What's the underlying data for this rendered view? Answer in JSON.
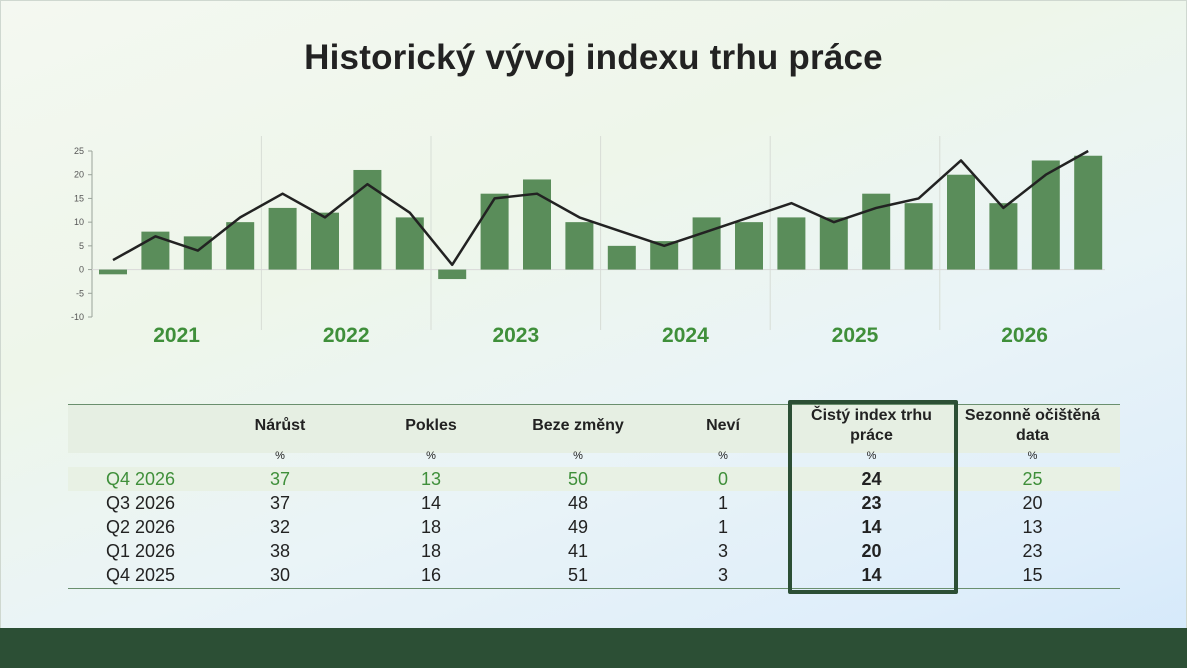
{
  "title": "Historický vývoj indexu trhu práce",
  "chart_data": {
    "type": "bar",
    "y_ticks": [
      25,
      20,
      15,
      10,
      5,
      0,
      -5,
      -10
    ],
    "ylim": [
      -10,
      25
    ],
    "groups": [
      "2021",
      "2022",
      "2023",
      "2024",
      "2025",
      "2026"
    ],
    "group_sizes": [
      4,
      4,
      4,
      4,
      4,
      4
    ],
    "series": [
      {
        "kind": "bar",
        "color": "#5a8d5a",
        "values": [
          -1,
          8,
          7,
          10,
          13,
          12,
          21,
          11,
          -2,
          16,
          19,
          10,
          5,
          6,
          11,
          10,
          11,
          11,
          16,
          14,
          20,
          14,
          23,
          24
        ]
      },
      {
        "kind": "line",
        "color": "#222222",
        "values": [
          2,
          7,
          4,
          11,
          16,
          11,
          18,
          12,
          1,
          15,
          16,
          11,
          8,
          5,
          8,
          11,
          14,
          10,
          13,
          15,
          23,
          13,
          20,
          25
        ]
      }
    ],
    "group_label_color": "#3f8f3a",
    "grid": false
  },
  "table": {
    "headers": [
      "Nárůst",
      "Pokles",
      "Beze změny",
      "Neví",
      "Čistý index trhu práce",
      "Sezonně očištěná data"
    ],
    "units": [
      "%",
      "%",
      "%",
      "%",
      "%",
      "%"
    ],
    "rows": [
      {
        "label": "Q4 2026",
        "values": [
          "37",
          "13",
          "50",
          "0",
          "24",
          "25"
        ]
      },
      {
        "label": "Q3 2026",
        "values": [
          "37",
          "14",
          "48",
          "1",
          "23",
          "20"
        ]
      },
      {
        "label": "Q2 2026",
        "values": [
          "32",
          "18",
          "49",
          "1",
          "14",
          "13"
        ]
      },
      {
        "label": "Q1 2026",
        "values": [
          "38",
          "18",
          "41",
          "3",
          "20",
          "23"
        ]
      },
      {
        "label": "Q4 2025",
        "values": [
          "30",
          "16",
          "51",
          "3",
          "14",
          "15"
        ]
      }
    ]
  },
  "colors": {
    "accent_green": "#3f8f3a",
    "bar_green": "#5a8d5a",
    "dark_green": "#2c4f35"
  }
}
